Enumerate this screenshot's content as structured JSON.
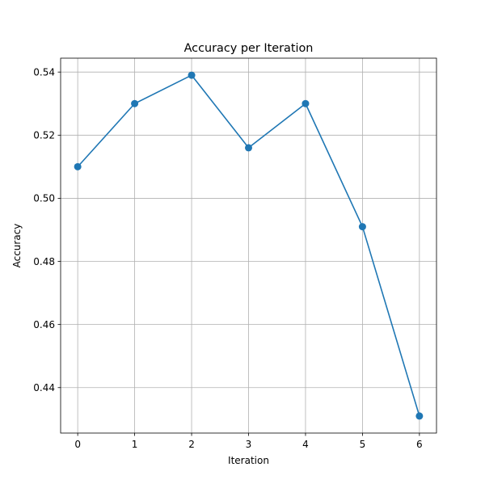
{
  "chart_data": {
    "type": "line",
    "title": "Accuracy per Iteration",
    "xlabel": "Iteration",
    "ylabel": "Accuracy",
    "x": [
      0,
      1,
      2,
      3,
      4,
      5,
      6
    ],
    "series": [
      {
        "values": [
          0.51,
          0.53,
          0.539,
          0.516,
          0.53,
          0.491,
          0.431
        ]
      }
    ],
    "xlim": [
      -0.3,
      6.3
    ],
    "ylim": [
      0.4256,
      0.5444
    ],
    "xticks": [
      "0",
      "1",
      "2",
      "3",
      "4",
      "5",
      "6"
    ],
    "yticks": [
      "0.44",
      "0.46",
      "0.48",
      "0.50",
      "0.52",
      "0.54"
    ],
    "grid": true,
    "markers": true,
    "line_color": "#1f77b4"
  }
}
